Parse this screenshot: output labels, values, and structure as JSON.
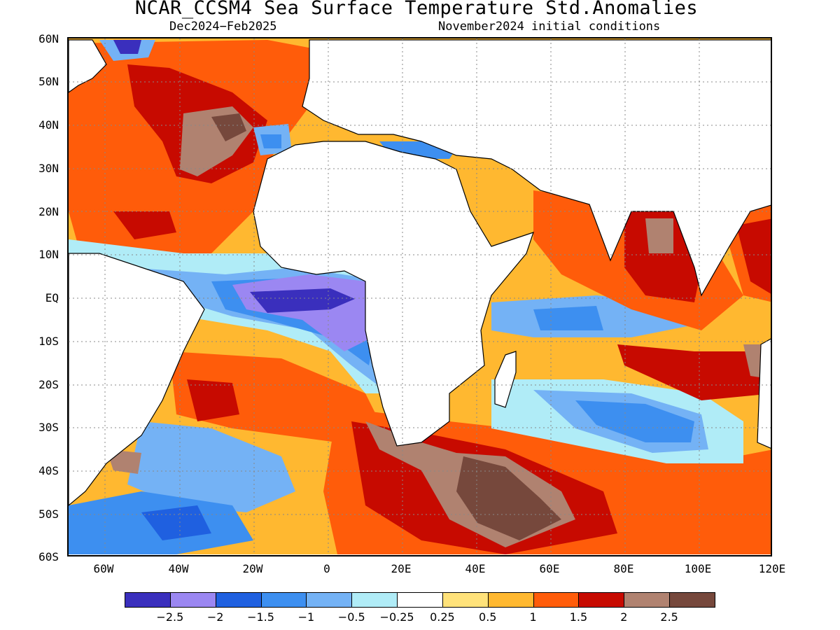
{
  "title": "NCAR_CCSM4 Sea Surface Temperature Std.Anomalies",
  "subtitle_left": "Dec2024−Feb2025",
  "subtitle_right": "November2024 initial conditions",
  "lat_labels": [
    "60N",
    "50N",
    "40N",
    "30N",
    "20N",
    "10N",
    "EQ",
    "10S",
    "20S",
    "30S",
    "40S",
    "50S",
    "60S"
  ],
  "lon_labels": [
    "60W",
    "40W",
    "20W",
    "0",
    "20E",
    "40E",
    "60E",
    "80E",
    "100E",
    "120E"
  ],
  "map": {
    "lat_range": [
      -60,
      60
    ],
    "lon_range": [
      -70,
      120
    ],
    "grid": "dotted"
  },
  "colorbar": {
    "colors": [
      "#3a2fbd",
      "#9b87f2",
      "#1f60e0",
      "#3d8ff0",
      "#74b2f5",
      "#b0ecf7",
      "#ffffff",
      "#ffe27a",
      "#ffb830",
      "#ff5c0a",
      "#c70a00",
      "#b08270",
      "#76483c"
    ],
    "labels": [
      "−2.5",
      "−2",
      "−1.5",
      "−1",
      "−0.5",
      "−0.25",
      "0.25",
      "0.5",
      "1",
      "1.5",
      "2",
      "2.5"
    ]
  }
}
